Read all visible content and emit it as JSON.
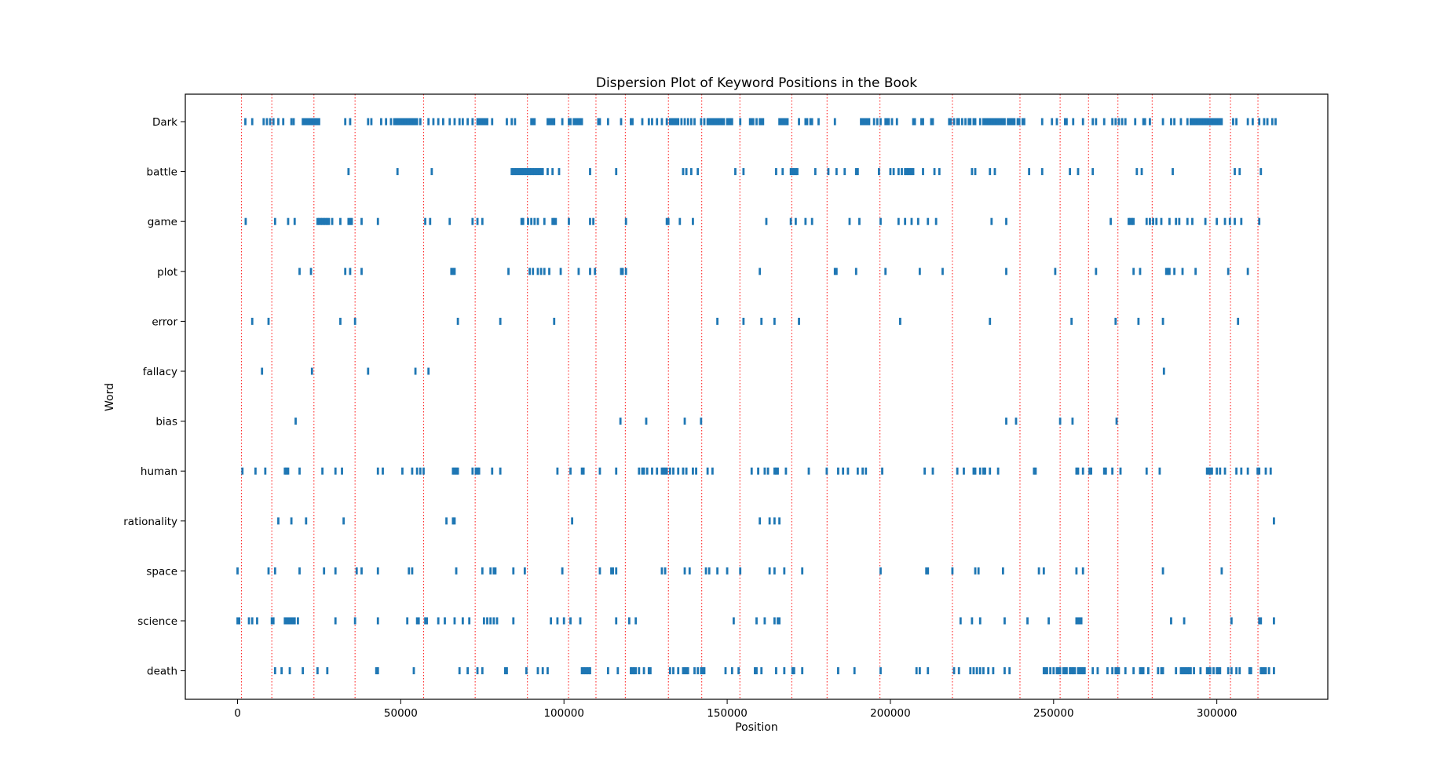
{
  "chart_data": {
    "type": "scatter",
    "title": "Dispersion Plot of Keyword Positions in the Book",
    "xlabel": "Position",
    "ylabel": "Word",
    "xlim": [
      -16000,
      334000
    ],
    "x_ticks": [
      0,
      50000,
      100000,
      150000,
      200000,
      250000,
      300000
    ],
    "grid": false,
    "legend": "none",
    "marker_color": "#1f77b4",
    "boundary_color": "#ff0000",
    "chapter_boundaries": [
      1200,
      10500,
      23400,
      36000,
      57000,
      72800,
      88800,
      101400,
      109800,
      118800,
      132000,
      142200,
      153900,
      169800,
      180600,
      196800,
      219000,
      239700,
      252000,
      260700,
      269700,
      280200,
      297900,
      304200,
      312600
    ],
    "words": [
      "Dark",
      "battle",
      "game",
      "plot",
      "error",
      "fallacy",
      "bias",
      "human",
      "rationality",
      "space",
      "science",
      "death"
    ],
    "series": [
      {
        "name": "Dark",
        "positions": [
          2400,
          4500,
          8000,
          9000,
          10000,
          11000,
          12500,
          14000,
          16500,
          17200,
          20000,
          20500,
          21000,
          21500,
          22000,
          22500,
          23000,
          23500,
          24000,
          24500,
          25000,
          33000,
          34500,
          40000,
          41000,
          44000,
          45500,
          47000,
          48000,
          48500,
          49000,
          49500,
          50000,
          50500,
          51000,
          51500,
          52000,
          52500,
          53000,
          53500,
          54000,
          54500,
          55000,
          56000,
          58500,
          60000,
          61500,
          63000,
          65000,
          66500,
          68000,
          69000,
          70500,
          72000,
          73500,
          74000,
          74500,
          75000,
          75500,
          76000,
          76500,
          78000,
          82500,
          84000,
          85000,
          90000,
          90500,
          91000,
          95000,
          95500,
          96000,
          96500,
          97000,
          99500,
          101500,
          102000,
          103000,
          103500,
          104000,
          104500,
          105000,
          105500,
          110500,
          111000,
          113500,
          117500,
          120500,
          121000,
          124000,
          126000,
          127000,
          128500,
          130000,
          131500,
          132500,
          133000,
          133500,
          134000,
          134500,
          135000,
          136000,
          137000,
          138000,
          139000,
          140000,
          142000,
          143000,
          144000,
          144500,
          145000,
          145500,
          146000,
          146500,
          147000,
          147500,
          148000,
          148500,
          149000,
          150000,
          150500,
          151000,
          151500,
          154000,
          157000,
          157500,
          158000,
          159000,
          160000,
          160500,
          161000,
          166000,
          166500,
          167000,
          167500,
          168000,
          168500,
          172000,
          174000,
          174500,
          175500,
          176000,
          178000,
          183000,
          191000,
          191500,
          192000,
          192500,
          193000,
          193500,
          195000,
          196000,
          197000,
          198500,
          199000,
          199500,
          200500,
          202000,
          207000,
          207500,
          209500,
          210000,
          212500,
          213000,
          218000,
          218500,
          219500,
          220500,
          221000,
          222000,
          223000,
          224000,
          224500,
          225500,
          226000,
          227500,
          228500,
          229000,
          229500,
          230000,
          230500,
          231000,
          231500,
          232000,
          232500,
          233000,
          233500,
          234000,
          234500,
          235000,
          236000,
          236500,
          237000,
          237500,
          238000,
          239000,
          239500,
          240500,
          241000,
          246500,
          249500,
          251000,
          253500,
          254000,
          256000,
          259000,
          262000,
          263000,
          265500,
          268000,
          269000,
          270000,
          271000,
          272000,
          275000,
          277500,
          278000,
          279500,
          283500,
          286000,
          287000,
          289000,
          291000,
          292000,
          292500,
          293000,
          293500,
          294000,
          294500,
          295000,
          295500,
          296000,
          296500,
          297000,
          297500,
          298000,
          298500,
          299000,
          299500,
          300000,
          300500,
          301000,
          301500,
          305000,
          306000,
          309500,
          311000,
          313000,
          314500,
          315500,
          317000,
          318000
        ]
      },
      {
        "name": "battle",
        "positions": [
          34000,
          49000,
          59500,
          84000,
          84500,
          85000,
          85500,
          86000,
          86500,
          87000,
          87500,
          88000,
          88500,
          89000,
          89500,
          90000,
          90500,
          91000,
          91500,
          92000,
          92500,
          93000,
          93500,
          95000,
          96500,
          98500,
          108000,
          116000,
          136500,
          137500,
          139000,
          141000,
          152500,
          155000,
          165000,
          167000,
          169500,
          170000,
          170500,
          171000,
          171500,
          177000,
          181000,
          183500,
          186000,
          189500,
          190000,
          196500,
          200000,
          201000,
          202500,
          203500,
          204500,
          205000,
          205500,
          206000,
          206500,
          207000,
          210000,
          213500,
          215000,
          225000,
          226000,
          230500,
          232000,
          242500,
          246500,
          255000,
          257500,
          262000,
          275500,
          277000,
          286500,
          305500,
          307000,
          313500
        ]
      },
      {
        "name": "game",
        "positions": [
          2500,
          11500,
          15500,
          17500,
          24500,
          25000,
          25500,
          26000,
          26500,
          27000,
          27500,
          28000,
          29000,
          31500,
          34000,
          34500,
          35000,
          38000,
          43000,
          57500,
          59000,
          65000,
          72000,
          73500,
          75000,
          87000,
          87500,
          89000,
          90000,
          91000,
          92000,
          94000,
          96500,
          97000,
          97500,
          101500,
          108000,
          109000,
          119000,
          131500,
          132000,
          135500,
          139500,
          162000,
          169500,
          171000,
          174000,
          176000,
          187500,
          190500,
          197000,
          202500,
          204500,
          206500,
          208500,
          211500,
          214000,
          231000,
          235500,
          267500,
          273000,
          273500,
          274000,
          274500,
          278500,
          279500,
          280500,
          281500,
          283000,
          285500,
          287500,
          288500,
          291000,
          292500,
          296500,
          300000,
          302500,
          304000,
          305500,
          307500,
          313000
        ]
      },
      {
        "name": "plot",
        "positions": [
          19000,
          22500,
          33000,
          34500,
          38000,
          65500,
          66000,
          66500,
          83000,
          89500,
          90500,
          92000,
          93000,
          94000,
          95500,
          99000,
          104500,
          108000,
          109500,
          117500,
          118000,
          119000,
          160000,
          183000,
          183500,
          189500,
          198500,
          209000,
          216000,
          235500,
          250500,
          263000,
          274500,
          276500,
          284500,
          285000,
          285500,
          287000,
          289500,
          293500,
          303500,
          309500
        ]
      },
      {
        "name": "error",
        "positions": [
          4500,
          9500,
          31500,
          36000,
          67500,
          80500,
          97000,
          147000,
          155000,
          160500,
          164500,
          172000,
          203000,
          230500,
          255500,
          269000,
          276000,
          283500,
          306500
        ]
      },
      {
        "name": "fallacy",
        "positions": [
          7500,
          22800,
          40000,
          54500,
          58500,
          283800
        ]
      },
      {
        "name": "bias",
        "positions": [
          17800,
          117300,
          125200,
          137000,
          142000,
          235500,
          238500,
          252000,
          255800,
          269300
        ]
      },
      {
        "name": "human",
        "positions": [
          1500,
          5500,
          8500,
          14500,
          15000,
          15500,
          19000,
          26000,
          30000,
          32000,
          43000,
          44500,
          50500,
          53500,
          55000,
          56000,
          57000,
          66000,
          66500,
          67000,
          67500,
          72000,
          73000,
          73500,
          74000,
          78000,
          80500,
          98000,
          102000,
          105500,
          106000,
          111000,
          116000,
          123000,
          124000,
          124500,
          125500,
          127000,
          128500,
          130000,
          130500,
          131000,
          131500,
          132500,
          133500,
          135000,
          136500,
          137500,
          139500,
          140500,
          144000,
          145500,
          157500,
          159500,
          161500,
          162500,
          164500,
          165000,
          165500,
          168000,
          175000,
          180500,
          184000,
          185500,
          187000,
          190000,
          191500,
          192500,
          197500,
          210500,
          213000,
          220500,
          222500,
          225500,
          226000,
          227500,
          228500,
          229000,
          230500,
          233000,
          244000,
          244500,
          257000,
          257500,
          259000,
          261000,
          261500,
          265500,
          266000,
          268000,
          270500,
          278500,
          282500,
          297000,
          297500,
          298000,
          298500,
          300000,
          301000,
          302500,
          306000,
          307500,
          309500,
          312500,
          313000,
          315000,
          316500
        ]
      },
      {
        "name": "rationality",
        "positions": [
          12500,
          16500,
          21000,
          32500,
          64000,
          66000,
          66500,
          102500,
          160000,
          163000,
          164500,
          166000,
          317500
        ]
      },
      {
        "name": "space",
        "positions": [
          0,
          9500,
          11500,
          19000,
          26500,
          30000,
          36500,
          38000,
          43000,
          52500,
          53500,
          67000,
          75000,
          77500,
          78500,
          79000,
          84500,
          88000,
          99500,
          111000,
          114500,
          115000,
          116000,
          130000,
          131000,
          137000,
          138500,
          143500,
          144500,
          147000,
          150000,
          154000,
          163000,
          164500,
          167500,
          173000,
          197000,
          211000,
          211500,
          219000,
          226000,
          227000,
          234500,
          245500,
          247000,
          257000,
          259000,
          283500,
          301500
        ]
      },
      {
        "name": "science",
        "positions": [
          0,
          500,
          3500,
          4500,
          6000,
          10500,
          11000,
          14500,
          15000,
          15500,
          16000,
          16500,
          17000,
          17500,
          18500,
          30000,
          36000,
          43000,
          52000,
          55000,
          55500,
          57500,
          58000,
          61500,
          63500,
          66500,
          69000,
          71000,
          75500,
          76500,
          77500,
          78500,
          79500,
          84500,
          96000,
          98000,
          100000,
          102000,
          105000,
          116000,
          120000,
          122000,
          152000,
          159000,
          161500,
          164500,
          165500,
          166000,
          221500,
          225000,
          227500,
          235000,
          242000,
          248500,
          257000,
          257500,
          258000,
          258500,
          286000,
          290000,
          304500,
          313000,
          313500,
          317500
        ]
      },
      {
        "name": "death",
        "positions": [
          11500,
          13500,
          16000,
          20000,
          24500,
          27500,
          42500,
          43000,
          54000,
          68000,
          70500,
          73500,
          75000,
          82000,
          82500,
          88500,
          92000,
          93500,
          95000,
          105500,
          106000,
          106500,
          107000,
          107500,
          108000,
          113500,
          116500,
          120500,
          121000,
          121500,
          122000,
          123000,
          124500,
          126000,
          126500,
          132500,
          133500,
          135000,
          136500,
          137000,
          137500,
          138000,
          140000,
          141000,
          142000,
          142500,
          143000,
          149500,
          151500,
          153500,
          158500,
          159000,
          160500,
          165000,
          167500,
          170000,
          170500,
          173000,
          184000,
          189000,
          197000,
          208000,
          209000,
          211500,
          219500,
          221000,
          224500,
          225500,
          226500,
          227500,
          228500,
          230000,
          231500,
          235000,
          236500,
          247000,
          247500,
          248000,
          249000,
          250000,
          251000,
          251500,
          252000,
          253000,
          253500,
          254000,
          255000,
          255500,
          256000,
          256500,
          257500,
          258000,
          258500,
          259000,
          259500,
          262000,
          263500,
          266500,
          268000,
          269000,
          269500,
          270000,
          272000,
          274500,
          276500,
          277000,
          277500,
          279000,
          282000,
          283000,
          283500,
          287500,
          289000,
          289500,
          290000,
          290500,
          291000,
          291500,
          292000,
          293000,
          295000,
          297000,
          297500,
          298000,
          299000,
          300000,
          300500,
          301000,
          303500,
          304500,
          306000,
          307000,
          310000,
          310500,
          313500,
          314000,
          314500,
          315000,
          316000,
          317500
        ]
      }
    ]
  }
}
